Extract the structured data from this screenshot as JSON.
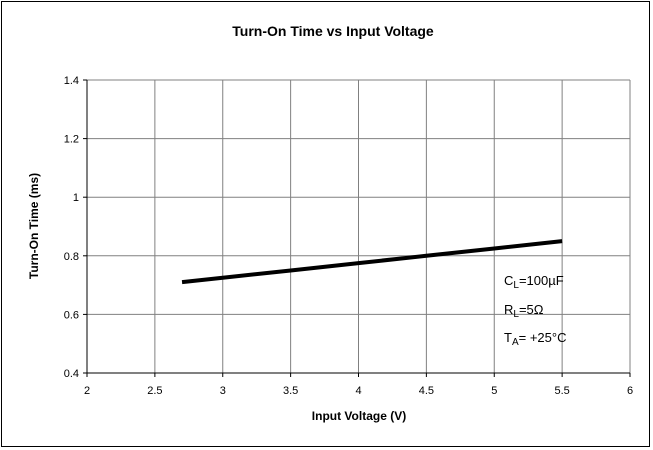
{
  "chart_data": {
    "type": "line",
    "title": "Turn-On Time vs Input Voltage",
    "xlabel": "Input Voltage (V)",
    "ylabel": "Turn-On Time (ms)",
    "xlim": [
      2,
      6
    ],
    "ylim": [
      0.4,
      1.4
    ],
    "xticks": [
      "2",
      "2.5",
      "3",
      "3.5",
      "4",
      "4.5",
      "5",
      "5.5",
      "6"
    ],
    "yticks": [
      "0.4",
      "0.6",
      "0.8",
      "1",
      "1.2",
      "1.4"
    ],
    "grid": true,
    "series": [
      {
        "x": [
          2.7,
          3.0,
          3.5,
          4.0,
          4.5,
          5.0,
          5.5
        ],
        "y": [
          0.71,
          0.725,
          0.75,
          0.775,
          0.8,
          0.825,
          0.85
        ]
      }
    ],
    "annotations": [
      {
        "main": "C",
        "sub": "L",
        "rest": "=100µF"
      },
      {
        "main": "R",
        "sub": "L",
        "rest": "=5Ω"
      },
      {
        "main": "T",
        "sub": "A",
        "rest": "= +25°C"
      }
    ],
    "colors": {
      "line": "#000000",
      "grid": "#808080"
    }
  }
}
